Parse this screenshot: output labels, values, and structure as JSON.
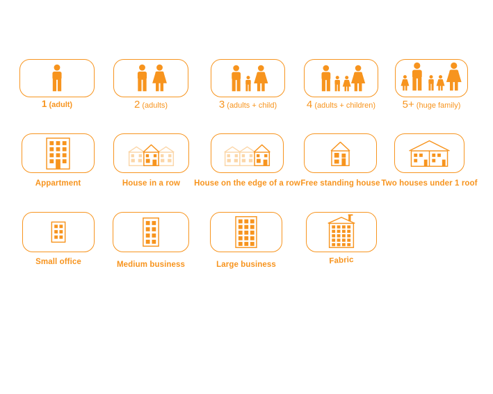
{
  "accent_color": "#f7941e",
  "faded_opacity": 0.38,
  "groups": [
    {
      "title": "household-size",
      "items": [
        {
          "label_number": "1",
          "label_rest": "(adult)",
          "icon": "family-1-adult",
          "emphasized": true
        },
        {
          "label_number": "2",
          "label_rest": "(adults)",
          "icon": "family-2-adults",
          "emphasized": false
        },
        {
          "label_number": "3",
          "label_rest": "(adults + child)",
          "icon": "family-3-adults-child",
          "emphasized": false
        },
        {
          "label_number": "4",
          "label_rest": "(adults + children)",
          "icon": "family-4-adults-children",
          "emphasized": false
        },
        {
          "label_number": "5+",
          "label_rest": "(huge family)",
          "icon": "family-5-huge-family",
          "emphasized": false
        }
      ]
    },
    {
      "title": "dwelling-type",
      "items": [
        {
          "label": "Appartment",
          "icon": "apartment-building"
        },
        {
          "label": "House in a row",
          "icon": "house-in-a-row"
        },
        {
          "label": "House on the edge of a row",
          "icon": "house-edge-of-row"
        },
        {
          "label": "Free standing house",
          "icon": "free-standing-house"
        },
        {
          "label": "Two houses under 1 roof",
          "icon": "two-houses-under-one-roof"
        }
      ]
    },
    {
      "title": "business-type",
      "items": [
        {
          "label": "Small office",
          "icon": "small-office-building"
        },
        {
          "label": "Medium business",
          "icon": "medium-business-building"
        },
        {
          "label": "Large business",
          "icon": "large-business-building"
        },
        {
          "label": "Fabric",
          "icon": "factory-building"
        }
      ]
    }
  ]
}
